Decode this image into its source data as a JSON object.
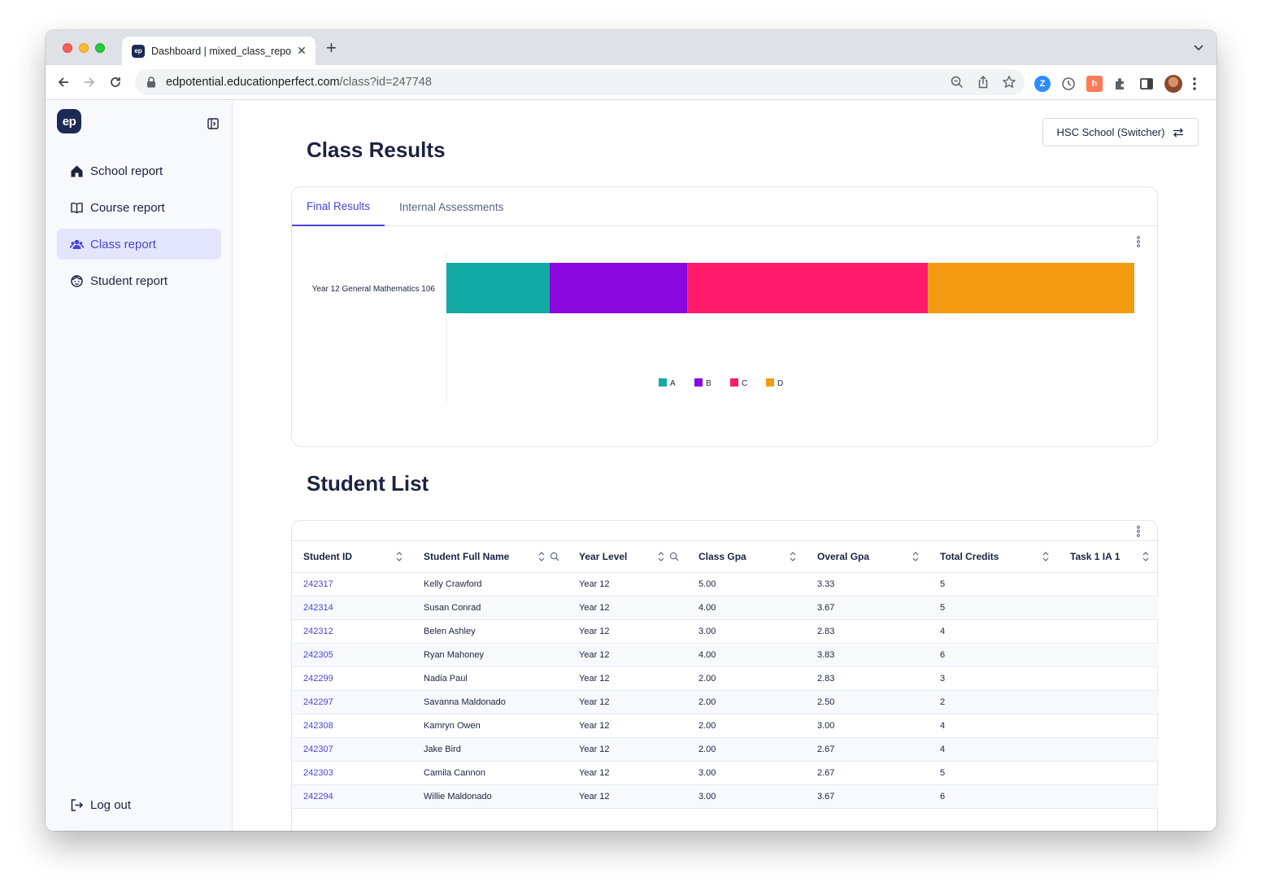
{
  "browser": {
    "tab_title": "Dashboard | mixed_class_repo",
    "tab_favicon": "ep",
    "url_host": "edpotential.educationperfect.com",
    "url_path": "/class?id=247748"
  },
  "sidebar": {
    "logo": "ep",
    "items": [
      {
        "label": "School report",
        "icon": "home-icon"
      },
      {
        "label": "Course report",
        "icon": "book-icon"
      },
      {
        "label": "Class report",
        "icon": "users-icon",
        "active": true
      },
      {
        "label": "Student report",
        "icon": "face-icon"
      }
    ],
    "logout": "Log out"
  },
  "header": {
    "title": "Class Results",
    "switcher_label": "HSC School (Switcher)"
  },
  "results_card": {
    "tabs": [
      "Final Results",
      "Internal Assessments"
    ],
    "active_tab": 0
  },
  "chart_data": {
    "type": "bar",
    "orientation": "horizontal",
    "stacked": true,
    "categories": [
      "Year 12 General Mathematics 106"
    ],
    "series": [
      {
        "name": "A",
        "values": [
          3
        ],
        "color": "#13a9a5"
      },
      {
        "name": "B",
        "values": [
          4
        ],
        "color": "#8a07df"
      },
      {
        "name": "C",
        "values": [
          7
        ],
        "color": "#ff1a6c"
      },
      {
        "name": "D",
        "values": [
          6
        ],
        "color": "#f39c12"
      }
    ],
    "legend_position": "bottom-center",
    "grid": false
  },
  "student_list": {
    "title": "Student List",
    "columns": [
      {
        "label": "Student ID",
        "search": false
      },
      {
        "label": "Student Full Name",
        "search": true
      },
      {
        "label": "Year Level",
        "search": true
      },
      {
        "label": "Class Gpa",
        "search": false
      },
      {
        "label": "Overal Gpa",
        "search": false
      },
      {
        "label": "Total Credits",
        "search": false
      },
      {
        "label": "Task 1 IA 1",
        "search": false
      }
    ],
    "rows": [
      [
        "242317",
        "Kelly Crawford",
        "Year 12",
        "5.00",
        "3.33",
        "5",
        ""
      ],
      [
        "242314",
        "Susan Conrad",
        "Year 12",
        "4.00",
        "3.67",
        "5",
        ""
      ],
      [
        "242312",
        "Belen Ashley",
        "Year 12",
        "3.00",
        "2.83",
        "4",
        ""
      ],
      [
        "242305",
        "Ryan Mahoney",
        "Year 12",
        "4.00",
        "3.83",
        "6",
        ""
      ],
      [
        "242299",
        "Nadia Paul",
        "Year 12",
        "2.00",
        "2.83",
        "3",
        ""
      ],
      [
        "242297",
        "Savanna Maldonado",
        "Year 12",
        "2.00",
        "2.50",
        "2",
        ""
      ],
      [
        "242308",
        "Kamryn Owen",
        "Year 12",
        "2.00",
        "3.00",
        "4",
        ""
      ],
      [
        "242307",
        "Jake Bird",
        "Year 12",
        "2.00",
        "2.67",
        "4",
        ""
      ],
      [
        "242303",
        "Camila Cannon",
        "Year 12",
        "3.00",
        "2.67",
        "5",
        ""
      ],
      [
        "242294",
        "Willie Maldonado",
        "Year 12",
        "3.00",
        "3.67",
        "6",
        ""
      ]
    ]
  }
}
